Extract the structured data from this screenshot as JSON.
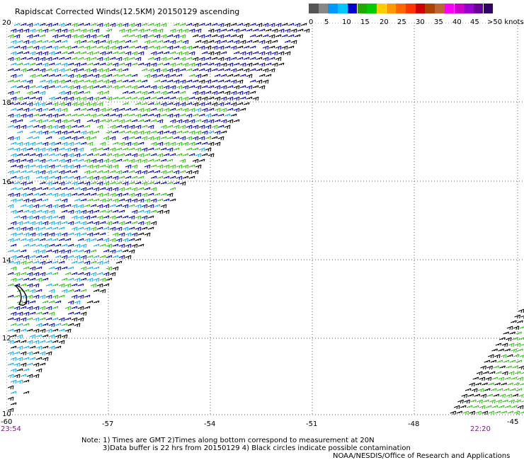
{
  "title": "Rapidscat Corrected Winds(12.5KM) 20150129 ascending",
  "legend": {
    "colors": [
      "#555555",
      "#888888",
      "#0099ff",
      "#00c8ff",
      "#0000cc",
      "#22aa00",
      "#00cc00",
      "#ffcc00",
      "#ff9900",
      "#ff6600",
      "#ff3300",
      "#cc0000",
      "#aa4400",
      "#bb6633",
      "#ff00ff",
      "#cc00cc",
      "#9900cc",
      "#660099",
      "#330066"
    ],
    "labels": [
      "0",
      "5",
      "10",
      "15",
      "20",
      "25",
      "30",
      "35",
      "40",
      "45",
      ">50 knots"
    ]
  },
  "axes": {
    "y_ticks": [
      "20",
      "18",
      "16",
      "14",
      "12",
      "10"
    ],
    "x_ticks": [
      "-60",
      "-57",
      "-54",
      "-51",
      "-48",
      "-45"
    ]
  },
  "time_labels": {
    "left": "23:54",
    "right": "22:20"
  },
  "notes": {
    "line1": "Note:  1) Times are GMT  2)Times along bottom correspond to measurement at 20N",
    "line2": "3)Data buffer is 22 hrs from 20150129  4) Black circles indicate possible contamination",
    "line3": "NOAA/NESDIS/Office of Research and Applications"
  },
  "wind_colors": {
    "calm": "#000000",
    "light": "#00b4ff",
    "moderate": "#0000cc",
    "fresh": "#22cc00"
  }
}
